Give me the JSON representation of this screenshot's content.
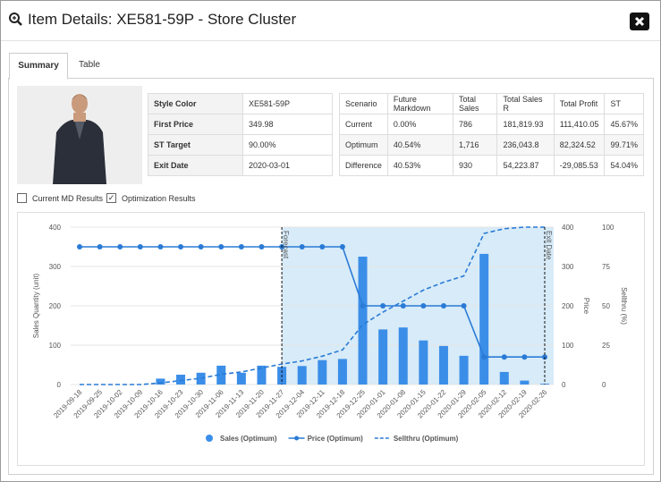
{
  "header": {
    "title": "Item Details: XE581-59P - Store Cluster"
  },
  "tabs": [
    "Summary",
    "Table"
  ],
  "item_table": {
    "rows": [
      [
        "Style Color",
        "XE581-59P"
      ],
      [
        "First Price",
        "349.98"
      ],
      [
        "ST Target",
        "90.00%"
      ],
      [
        "Exit Date",
        "2020-03-01"
      ]
    ]
  },
  "scenario_table": {
    "columns": [
      "Scenario",
      "Future Markdown",
      "Total Sales",
      "Total Sales R",
      "Total Profit",
      "ST"
    ],
    "rows": [
      [
        "Current",
        "0.00%",
        "786",
        "181,819.93",
        "111,410.05",
        "45.67%"
      ],
      [
        "Optimum",
        "40.54%",
        "1,716",
        "236,043.8",
        "82,324.52",
        "99.71%"
      ],
      [
        "Difference",
        "40.53%",
        "930",
        "54,223.87",
        "-29,085.53",
        "54.04%"
      ]
    ]
  },
  "checkboxes": [
    {
      "label": "Current MD Results",
      "checked": false
    },
    {
      "label": "Optimization Results",
      "checked": true
    }
  ],
  "chart_data": {
    "type": "combo",
    "categories": [
      "2019-09-18",
      "2019-09-25",
      "2019-10-02",
      "2019-10-09",
      "2019-10-16",
      "2019-10-23",
      "2019-10-30",
      "2019-11-06",
      "2019-11-13",
      "2019-11-20",
      "2019-11-27",
      "2019-12-04",
      "2019-12-11",
      "2019-12-18",
      "2019-12-25",
      "2020-01-01",
      "2020-01-08",
      "2020-01-15",
      "2020-01-22",
      "2020-01-29",
      "2020-02-05",
      "2020-02-12",
      "2020-02-19",
      "2020-02-26"
    ],
    "series": [
      {
        "name": "Sales (Optimum)",
        "type": "bar",
        "color": "#3b8ee8",
        "axis": "y",
        "values": [
          0,
          0,
          0,
          0,
          15,
          25,
          30,
          48,
          30,
          48,
          45,
          47,
          62,
          65,
          325,
          140,
          145,
          112,
          98,
          73,
          332,
          32,
          10,
          2
        ]
      },
      {
        "name": "Price (Optimum)",
        "type": "line",
        "color": "#2a7bd6",
        "axis": "y2",
        "markers": true,
        "values": [
          350,
          350,
          350,
          350,
          350,
          350,
          350,
          350,
          350,
          350,
          350,
          350,
          350,
          350,
          200,
          200,
          200,
          200,
          200,
          200,
          70,
          70,
          70,
          70
        ]
      },
      {
        "name": "Sellthru (Optimum)",
        "type": "line",
        "color": "#2a7bd6",
        "axis": "y3",
        "dashed": true,
        "values": [
          0,
          0,
          0,
          0,
          1,
          2.5,
          4,
          6.5,
          8,
          10.5,
          13,
          15,
          18,
          22,
          38,
          46,
          53,
          60,
          65,
          69,
          96,
          99,
          100,
          100
        ]
      }
    ],
    "ylabel": "Sales Quantity (unit)",
    "ylim": [
      0,
      400
    ],
    "yticks": [
      0,
      100,
      200,
      300,
      400
    ],
    "y2label": "Price",
    "y2lim": [
      0,
      400
    ],
    "y2ticks": [
      0,
      100,
      200,
      300,
      400
    ],
    "y3label": "Sellthru (%)",
    "y3lim": [
      0,
      100
    ],
    "y3ticks": [
      0,
      25,
      50,
      75,
      100
    ],
    "grid": true,
    "legend": "bottom",
    "annotations": [
      {
        "label": "Forecast",
        "x": "2019-11-27"
      },
      {
        "label": "Exit Date",
        "x": "2020-02-26"
      }
    ],
    "shade_color": "#d7ebf8"
  }
}
